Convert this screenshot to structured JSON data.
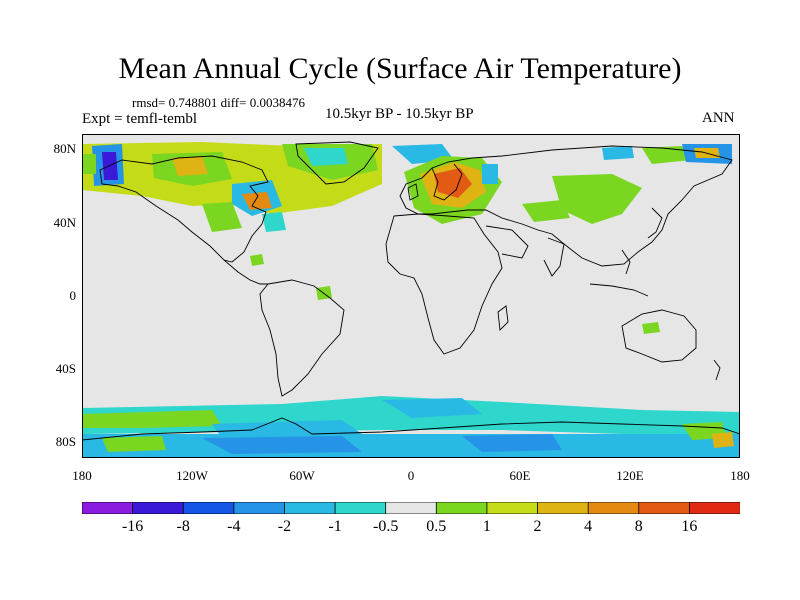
{
  "title": "Mean Annual Cycle (Surface Air Temperature)",
  "stats_line": "rmsd= 0.748801 diff= 0.0038476",
  "expt_line": "Expt = temfl-tembl",
  "period_line": "10.5kyr BP - 10.5kyr BP",
  "season": "ANN",
  "lat_labels": [
    "80N",
    "40N",
    "0",
    "40S",
    "80S"
  ],
  "lon_labels": [
    "180",
    "120W",
    "60W",
    "0",
    "60E",
    "120E",
    "180"
  ],
  "colorbar": {
    "labels": [
      "-16",
      "-8",
      "-4",
      "-2",
      "-1",
      "-0.5",
      "0.5",
      "1",
      "2",
      "4",
      "8",
      "16"
    ],
    "colors": [
      "#8a1ee0",
      "#3a1ad8",
      "#1556e6",
      "#2694e6",
      "#2ab8e4",
      "#2fd6cc",
      "#e6e6e6",
      "#7ad620",
      "#c4dc18",
      "#dfb314",
      "#e48a12",
      "#e25a14",
      "#e02a14"
    ]
  },
  "map": {
    "background_color": "#e6e6e6",
    "coastline_color": "#000000"
  }
}
